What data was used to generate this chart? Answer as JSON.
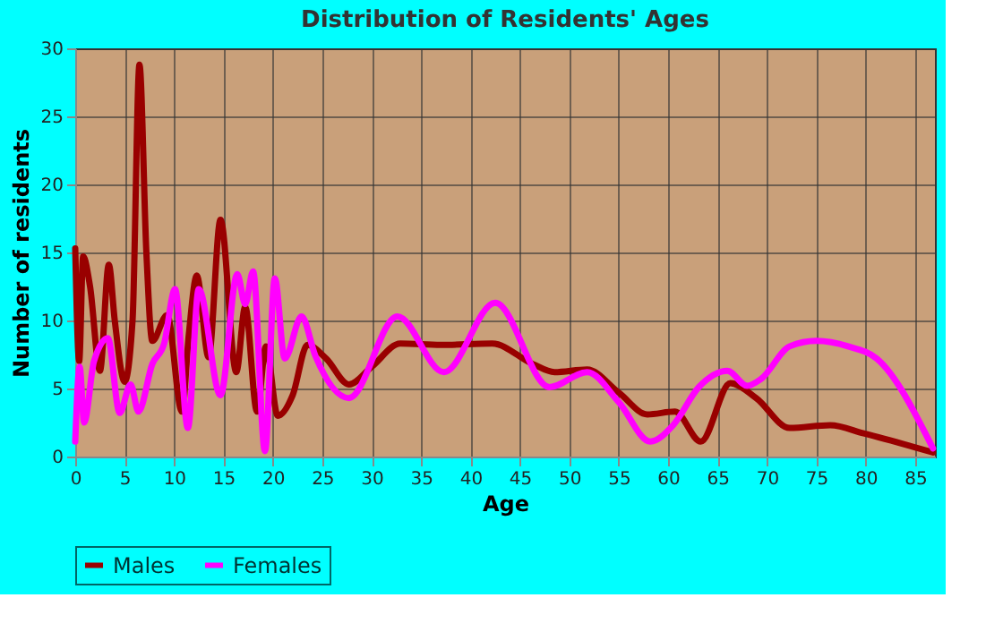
{
  "chart_data": {
    "type": "line",
    "title": "Distribution of Residents' Ages",
    "xlabel": "Age",
    "ylabel": "Number of residents",
    "xlim": [
      0,
      87
    ],
    "xticks": [
      0,
      5,
      10,
      15,
      20,
      25,
      30,
      35,
      40,
      45,
      50,
      55,
      60,
      65,
      70,
      75,
      80,
      85
    ],
    "ylim": [
      0,
      30
    ],
    "yticks": [
      0,
      5,
      10,
      15,
      20,
      25,
      30
    ],
    "grid": true,
    "legend": "bottom",
    "line_style": "solid",
    "marker": "none",
    "series": [
      {
        "name": "Males",
        "color": "#990000",
        "x": [
          0,
          0.4,
          0.8,
          1.5,
          2.5,
          3.4,
          4,
          5,
          5.8,
          6.5,
          7.2,
          7.8,
          9.3,
          10.8,
          11.5,
          12.3,
          13.5,
          14.7,
          16.3,
          17.2,
          18.4,
          19.3,
          20.5,
          22,
          23.5,
          25.4,
          27.7,
          30,
          32.9,
          37,
          42.2,
          46.3,
          48.5,
          51.8,
          55,
          57.9,
          60.7,
          63.3,
          66.3,
          68.9,
          72.3,
          76.4,
          79.8,
          86.8
        ],
        "values": [
          15.3,
          7,
          14.7,
          12.5,
          6.3,
          14.1,
          10,
          5.5,
          10,
          28.8,
          15,
          8.5,
          10.4,
          3.3,
          9,
          13.3,
          7.3,
          17.4,
          6.2,
          11,
          3.3,
          8.1,
          3,
          4.5,
          8.2,
          7.2,
          5.3,
          6.6,
          8.3,
          8.2,
          8.3,
          6.8,
          6.2,
          6.4,
          4.7,
          3.1,
          3.3,
          1.1,
          5.4,
          4.3,
          2.1,
          2.3,
          1.7,
          0.3
        ]
      },
      {
        "name": "Females",
        "color": "#ff00ff",
        "x": [
          0,
          0.45,
          0.9,
          1.9,
          3.3,
          4.5,
          5.6,
          6.4,
          7.8,
          9,
          10.1,
          11.4,
          12.5,
          14.7,
          16.4,
          17.2,
          18,
          19.2,
          20.2,
          21.2,
          22.9,
          24.3,
          27.7,
          32.6,
          37.3,
          42.5,
          48,
          51.8,
          55,
          58.2,
          60.5,
          63.1,
          66,
          68,
          69.4,
          72.3,
          75,
          78.2,
          81.1,
          86.8
        ],
        "values": [
          1.1,
          6.6,
          2.5,
          7,
          8.7,
          3.2,
          5.3,
          3.3,
          6.8,
          8.3,
          12.3,
          2.1,
          12.3,
          4.5,
          13.4,
          11.2,
          13.6,
          0.4,
          13.1,
          7.2,
          10.3,
          7.4,
          4.3,
          10.3,
          6.2,
          11.3,
          5.1,
          6.2,
          4,
          1.1,
          2.3,
          5.1,
          6.3,
          5.2,
          5.7,
          8.1,
          8.5,
          8.1,
          7.2,
          0.6
        ]
      }
    ]
  }
}
